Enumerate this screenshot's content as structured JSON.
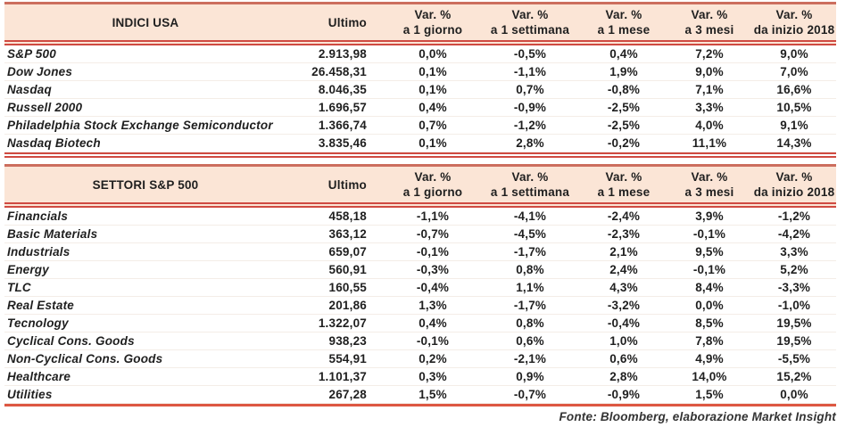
{
  "table": {
    "columns": {
      "ultimo": "Ultimo",
      "var_label": "Var. %",
      "periods": [
        "a 1 giorno",
        "a 1 settimana",
        "a 1 mese",
        "a 3 mesi",
        "da inizio 2018"
      ]
    },
    "sections": [
      {
        "title": "INDICI USA",
        "rows": [
          {
            "name": "S&P 500",
            "ultimo": "2.913,98",
            "vars": [
              "0,0%",
              "-0,5%",
              "0,4%",
              "7,2%",
              "9,0%"
            ]
          },
          {
            "name": "Dow Jones",
            "ultimo": "26.458,31",
            "vars": [
              "0,1%",
              "-1,1%",
              "1,9%",
              "9,0%",
              "7,0%"
            ]
          },
          {
            "name": "Nasdaq",
            "ultimo": "8.046,35",
            "vars": [
              "0,1%",
              "0,7%",
              "-0,8%",
              "7,1%",
              "16,6%"
            ]
          },
          {
            "name": "Russell 2000",
            "ultimo": "1.696,57",
            "vars": [
              "0,4%",
              "-0,9%",
              "-2,5%",
              "3,3%",
              "10,5%"
            ]
          },
          {
            "name": "Philadelphia Stock Exchange Semiconductor",
            "ultimo": "1.366,74",
            "vars": [
              "0,7%",
              "-1,2%",
              "-2,5%",
              "4,0%",
              "9,1%"
            ]
          },
          {
            "name": "Nasdaq Biotech",
            "ultimo": "3.835,46",
            "vars": [
              "0,1%",
              "2,8%",
              "-0,2%",
              "11,1%",
              "14,3%"
            ]
          }
        ]
      },
      {
        "title": "SETTORI S&P 500",
        "rows": [
          {
            "name": "Financials",
            "ultimo": "458,18",
            "vars": [
              "-1,1%",
              "-4,1%",
              "-2,4%",
              "3,9%",
              "-1,2%"
            ]
          },
          {
            "name": "Basic Materials",
            "ultimo": "363,12",
            "vars": [
              "-0,7%",
              "-4,5%",
              "-2,3%",
              "-0,1%",
              "-4,2%"
            ]
          },
          {
            "name": "Industrials",
            "ultimo": "659,07",
            "vars": [
              "-0,1%",
              "-1,7%",
              "2,1%",
              "9,5%",
              "3,3%"
            ]
          },
          {
            "name": "Energy",
            "ultimo": "560,91",
            "vars": [
              "-0,3%",
              "0,8%",
              "2,4%",
              "-0,1%",
              "5,2%"
            ]
          },
          {
            "name": "TLC",
            "ultimo": "160,55",
            "vars": [
              "-0,4%",
              "1,1%",
              "4,3%",
              "8,4%",
              "-3,3%"
            ]
          },
          {
            "name": "Real Estate",
            "ultimo": "201,86",
            "vars": [
              "1,3%",
              "-1,7%",
              "-3,2%",
              "0,0%",
              "-1,0%"
            ]
          },
          {
            "name": "Tecnology",
            "ultimo": "1.322,07",
            "vars": [
              "0,4%",
              "0,8%",
              "-0,4%",
              "8,5%",
              "19,5%"
            ]
          },
          {
            "name": "Cyclical Cons. Goods",
            "ultimo": "938,23",
            "vars": [
              "-0,1%",
              "0,6%",
              "1,0%",
              "7,8%",
              "19,5%"
            ]
          },
          {
            "name": "Non-Cyclical Cons. Goods",
            "ultimo": "554,91",
            "vars": [
              "0,2%",
              "-2,1%",
              "0,6%",
              "4,9%",
              "-5,5%"
            ]
          },
          {
            "name": "Healthcare",
            "ultimo": "1.101,37",
            "vars": [
              "0,3%",
              "0,9%",
              "2,8%",
              "14,0%",
              "15,2%"
            ]
          },
          {
            "name": "Utilities",
            "ultimo": "267,28",
            "vars": [
              "1,5%",
              "-0,7%",
              "-0,9%",
              "1,5%",
              "0,0%"
            ]
          }
        ]
      }
    ],
    "footer": "Fonte: Bloomberg, elaborazione Market Insight"
  },
  "colors": {
    "header_fill": "#fbe5d6",
    "border_red": "#cf4a41",
    "border_top_brown": "#cc6e5e",
    "bottom_rule": "#dd5742",
    "text": "#1f1f1f"
  }
}
